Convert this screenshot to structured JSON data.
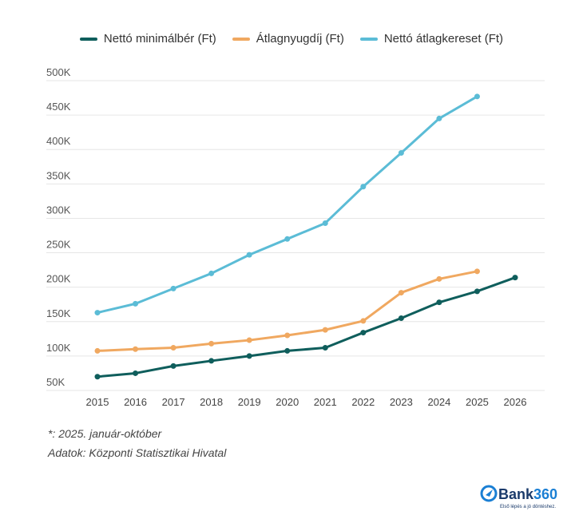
{
  "chart_data": {
    "type": "line",
    "x": [
      "2015",
      "2016",
      "2017",
      "2018",
      "2019",
      "2020",
      "2021",
      "2022",
      "2023",
      "2024",
      "2025",
      "2026"
    ],
    "ylim": [
      50000,
      500000
    ],
    "yticks": [
      "50K",
      "100K",
      "150K",
      "200K",
      "250K",
      "300K",
      "350K",
      "400K",
      "450K",
      "500K"
    ],
    "ytick_values": [
      50000,
      100000,
      150000,
      200000,
      250000,
      300000,
      350000,
      400000,
      450000,
      500000
    ],
    "grid": true,
    "legend": "top",
    "series": [
      {
        "name": "Nettó minimálbér (Ft)",
        "color": "#0f5e5c",
        "values": [
          70000,
          75000,
          85500,
          93000,
          100000,
          107500,
          112000,
          134000,
          155000,
          178000,
          194000,
          214000
        ]
      },
      {
        "name": "Átlagnyugdíj (Ft)",
        "color": "#f0a860",
        "values": [
          107500,
          110000,
          112000,
          118000,
          123000,
          130000,
          138000,
          151000,
          192000,
          212000,
          223000,
          null
        ]
      },
      {
        "name": "Nettó átlagkereset (Ft)",
        "color": "#5bbcd6",
        "values": [
          163000,
          176000,
          198000,
          220000,
          247000,
          270000,
          293000,
          346000,
          395000,
          445000,
          477000,
          null
        ]
      }
    ]
  },
  "notes": [
    "*: 2025. január-október",
    "Adatok: Központi Statisztikai Hivatal"
  ],
  "logo": {
    "name": "Bank360",
    "tagline": "Első lépés a jó döntéshez.",
    "color": "#1a7fd4"
  }
}
